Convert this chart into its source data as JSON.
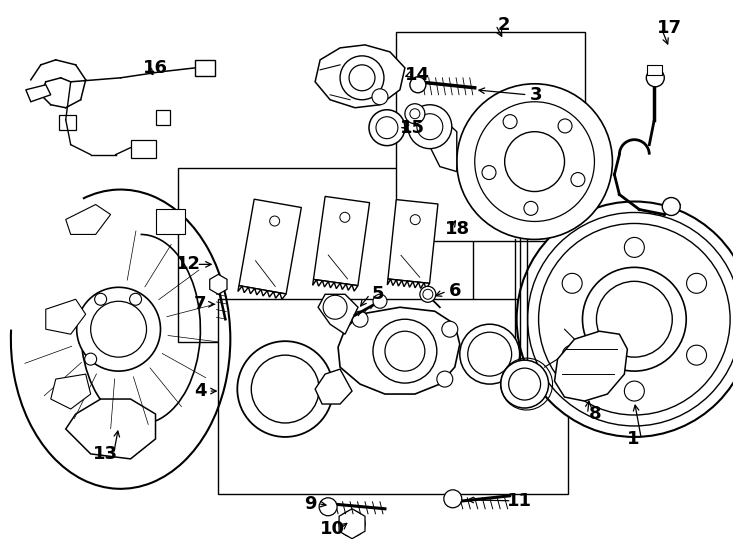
{
  "background_color": "#ffffff",
  "fig_width": 7.34,
  "fig_height": 5.4,
  "dpi": 100,
  "label_fontsize": 11,
  "small_fontsize": 8
}
